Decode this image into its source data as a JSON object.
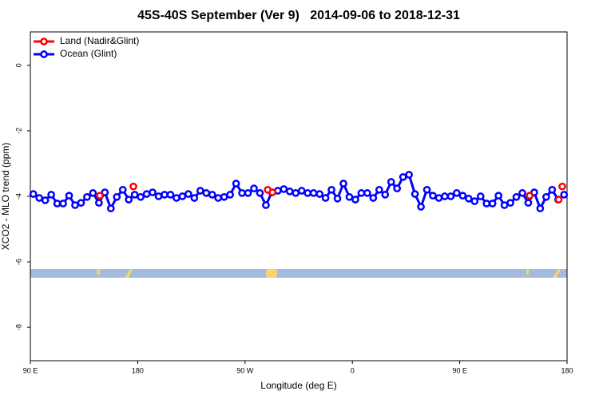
{
  "chart_data": {
    "type": "line",
    "title": "45S-40S September (Ver 9)   2014-09-06 to 2018-12-31",
    "xlabel": "Longitude (deg E)",
    "ylabel": "XCO2 - MLO trend (ppm)",
    "xlim": [
      90,
      540
    ],
    "ylim": [
      -9.02,
      1.02
    ],
    "xticks": [
      {
        "value": 90,
        "label": "90 E"
      },
      {
        "value": 180,
        "label": "180"
      },
      {
        "value": 270,
        "label": "90 W"
      },
      {
        "value": 360,
        "label": "0"
      },
      {
        "value": 450,
        "label": "90 E"
      },
      {
        "value": 540,
        "label": "180"
      }
    ],
    "yticks": [
      0,
      -2,
      -4,
      -6,
      -8
    ],
    "legend": "top-left",
    "series": [
      {
        "name": "Land (Nadir&Glint)",
        "color": "#ff0000",
        "x": [
          148.3,
          176.4,
          289,
          293,
          508.6,
          533,
          536
        ],
        "values": [
          -3.98,
          -3.7,
          -3.8,
          -3.88,
          -3.98,
          -4.1,
          -3.7
        ]
      },
      {
        "name": "Ocean (Glint)",
        "color": "#0000ff",
        "x": [
          92.5,
          97.5,
          102.5,
          107.5,
          112.5,
          117.5,
          122.5,
          127.5,
          132.5,
          137.5,
          142.5,
          147.5,
          152.5,
          157.5,
          162.5,
          167.5,
          172.5,
          177.5,
          182.5,
          187.5,
          192.5,
          197.5,
          202.5,
          207.5,
          212.5,
          217.5,
          222.5,
          227.5,
          232.5,
          237.5,
          242.5,
          247.5,
          252.5,
          257.5,
          262.5,
          267.5,
          272.5,
          277.5,
          282.5,
          287.5,
          292.5,
          297.5,
          302.5,
          307.5,
          312.5,
          317.5,
          322.5,
          327.5,
          332.5,
          337.5,
          342.5,
          347.5,
          352.5,
          357.5,
          362.5,
          367.5,
          372.5,
          377.5,
          382.5,
          387.5,
          392.5,
          397.5,
          402.5,
          407.5,
          412.5,
          417.5,
          422.5,
          427.5,
          432.5,
          437.5,
          442.5,
          447.5,
          452.5,
          457.5,
          462.5,
          467.5,
          472.5,
          477.5,
          482.5,
          487.5,
          492.5,
          497.5,
          502.5,
          507.5,
          512.5,
          517.5,
          522.5,
          527.5,
          532.5,
          537.5
        ],
        "values": [
          -3.93,
          -4.05,
          -4.12,
          -3.95,
          -4.22,
          -4.22,
          -3.98,
          -4.27,
          -4.2,
          -4.02,
          -3.9,
          -4.2,
          -3.88,
          -4.37,
          -4.02,
          -3.8,
          -4.1,
          -3.95,
          -4.02,
          -3.93,
          -3.88,
          -4.0,
          -3.95,
          -3.95,
          -4.05,
          -4.0,
          -3.93,
          -4.05,
          -3.83,
          -3.9,
          -3.95,
          -4.05,
          -4.02,
          -3.95,
          -3.61,
          -3.9,
          -3.9,
          -3.76,
          -3.9,
          -4.27,
          -3.88,
          -3.83,
          -3.78,
          -3.85,
          -3.9,
          -3.83,
          -3.9,
          -3.9,
          -3.93,
          -4.05,
          -3.8,
          -4.07,
          -3.61,
          -4.02,
          -4.1,
          -3.9,
          -3.9,
          -4.05,
          -3.8,
          -3.95,
          -3.56,
          -3.76,
          -3.41,
          -3.34,
          -3.93,
          -4.32,
          -3.8,
          -3.98,
          -4.05,
          -4.0,
          -4.0,
          -3.9,
          -3.98,
          -4.07,
          -4.15,
          -4.0,
          -4.22,
          -4.22,
          -3.98,
          -4.27,
          -4.2,
          -4.02,
          -3.9,
          -4.2,
          -3.88,
          -4.37,
          -4.02,
          -3.8,
          -4.1,
          -3.95
        ]
      }
    ]
  }
}
